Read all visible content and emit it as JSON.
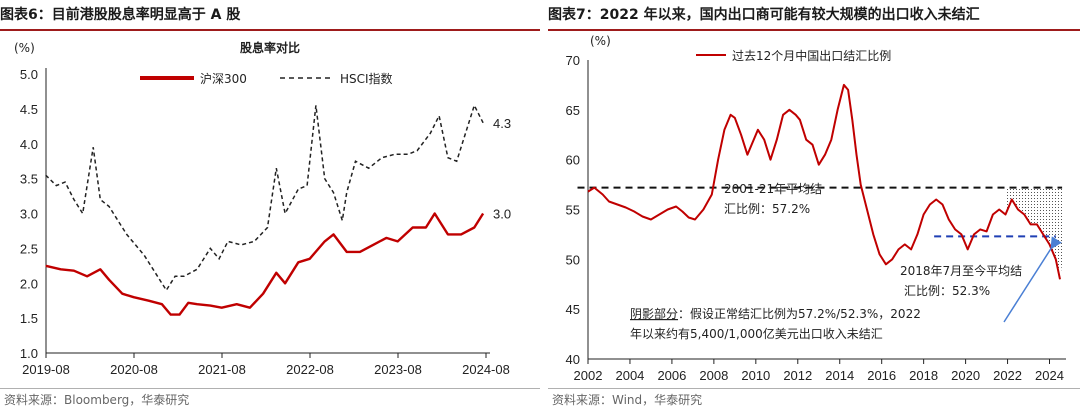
{
  "left": {
    "title": "图表6：目前港股股息率明显高于 A 股",
    "source": "资料来源：Bloomberg，华泰研究",
    "chart_data": {
      "type": "line",
      "title": "股息率对比",
      "unit_label": "(%)",
      "ylim": [
        1.0,
        5.0
      ],
      "yticks": [
        "1.0",
        "1.5",
        "2.0",
        "2.5",
        "3.0",
        "3.5",
        "4.0",
        "4.5",
        "5.0"
      ],
      "xlim": [
        "2019-08",
        "2024-08"
      ],
      "xticks": [
        "2019-08",
        "2020-08",
        "2021-08",
        "2022-08",
        "2023-08",
        "2024-08"
      ],
      "legend": [
        "沪深300",
        "HSCI指数"
      ],
      "legend_position": "top-center",
      "series": [
        {
          "name": "沪深300",
          "color": "#c00000",
          "style": "solid",
          "x": [
            2019.58,
            2019.75,
            2019.9,
            2020.05,
            2020.2,
            2020.3,
            2020.45,
            2020.58,
            2020.75,
            2020.9,
            2021.0,
            2021.1,
            2021.2,
            2021.3,
            2021.45,
            2021.58,
            2021.75,
            2021.9,
            2022.05,
            2022.2,
            2022.3,
            2022.45,
            2022.58,
            2022.75,
            2022.85,
            2023.0,
            2023.15,
            2023.3,
            2023.45,
            2023.58,
            2023.75,
            2023.9,
            2024.0,
            2024.05,
            2024.15,
            2024.3,
            2024.45,
            2024.55
          ],
          "values": [
            2.25,
            2.2,
            2.18,
            2.1,
            2.2,
            2.05,
            1.85,
            1.8,
            1.75,
            1.7,
            1.55,
            1.55,
            1.72,
            1.7,
            1.68,
            1.65,
            1.7,
            1.65,
            1.85,
            2.15,
            2.0,
            2.3,
            2.35,
            2.6,
            2.7,
            2.45,
            2.45,
            2.55,
            2.65,
            2.6,
            2.8,
            2.8,
            3.0,
            2.9,
            2.7,
            2.7,
            2.8,
            3.0
          ],
          "end_label": "3.0"
        },
        {
          "name": "HSCI指数",
          "color": "#222222",
          "style": "dashed",
          "x": [
            2019.58,
            2019.7,
            2019.8,
            2019.9,
            2020.0,
            2020.12,
            2020.2,
            2020.3,
            2020.4,
            2020.5,
            2020.6,
            2020.7,
            2020.8,
            2020.95,
            2021.05,
            2021.15,
            2021.3,
            2021.45,
            2021.55,
            2021.65,
            2021.8,
            2021.95,
            2022.1,
            2022.2,
            2022.3,
            2022.45,
            2022.55,
            2022.65,
            2022.75,
            2022.85,
            2022.95,
            2023.0,
            2023.1,
            2023.25,
            2023.4,
            2023.55,
            2023.7,
            2023.8,
            2023.95,
            2024.05,
            2024.15,
            2024.25,
            2024.35,
            2024.45,
            2024.55
          ],
          "values": [
            3.55,
            3.4,
            3.45,
            3.2,
            3.0,
            3.95,
            3.2,
            3.1,
            2.9,
            2.7,
            2.55,
            2.4,
            2.2,
            1.9,
            2.1,
            2.1,
            2.2,
            2.5,
            2.35,
            2.6,
            2.55,
            2.6,
            2.8,
            3.65,
            3.0,
            3.35,
            3.4,
            4.55,
            3.5,
            3.3,
            2.9,
            3.3,
            3.75,
            3.65,
            3.8,
            3.85,
            3.85,
            3.9,
            4.15,
            4.4,
            3.8,
            3.75,
            4.15,
            4.55,
            4.3
          ],
          "end_label": "4.3"
        }
      ]
    }
  },
  "right": {
    "title": "图表7：2022 年以来，国内出口商可能有较大规模的出口收入未结汇",
    "source": "资料来源：Wind，华泰研究",
    "chart_data": {
      "type": "line",
      "unit_label": "(%)",
      "ylim": [
        40,
        70
      ],
      "yticks": [
        "40",
        "45",
        "50",
        "55",
        "60",
        "65",
        "70"
      ],
      "xlim": [
        2002,
        2024.5
      ],
      "xticks": [
        "2002",
        "2004",
        "2006",
        "2008",
        "2010",
        "2012",
        "2014",
        "2016",
        "2018",
        "2020",
        "2022",
        "2024"
      ],
      "legend": [
        "过去12个月中国出口结汇比例"
      ],
      "legend_position": "top-center",
      "series": [
        {
          "name": "过去12个月中国出口结汇比例",
          "color": "#c00000",
          "style": "solid",
          "x": [
            2002.0,
            2002.3,
            2002.7,
            2003.0,
            2003.4,
            2003.8,
            2004.2,
            2004.6,
            2005.0,
            2005.4,
            2005.8,
            2006.2,
            2006.5,
            2006.8,
            2007.1,
            2007.5,
            2007.9,
            2008.2,
            2008.5,
            2008.8,
            2009.0,
            2009.3,
            2009.6,
            2009.8,
            2010.1,
            2010.4,
            2010.7,
            2011.0,
            2011.3,
            2011.6,
            2011.9,
            2012.1,
            2012.4,
            2012.7,
            2013.0,
            2013.3,
            2013.6,
            2013.9,
            2014.2,
            2014.4,
            2014.6,
            2014.8,
            2015.0,
            2015.3,
            2015.6,
            2015.9,
            2016.2,
            2016.5,
            2016.8,
            2017.1,
            2017.4,
            2017.7,
            2018.0,
            2018.3,
            2018.6,
            2018.9,
            2019.2,
            2019.5,
            2019.8,
            2020.1,
            2020.4,
            2020.7,
            2021.0,
            2021.3,
            2021.6,
            2021.9,
            2022.2,
            2022.5,
            2022.8,
            2023.1,
            2023.4,
            2023.7,
            2024.0,
            2024.3,
            2024.5
          ],
          "values": [
            56.8,
            57.2,
            56.5,
            55.8,
            55.5,
            55.2,
            54.8,
            54.3,
            54.0,
            54.5,
            55.0,
            55.3,
            54.8,
            54.2,
            54.0,
            55.0,
            56.5,
            60.0,
            63.0,
            64.5,
            64.2,
            62.5,
            60.5,
            61.5,
            63.0,
            62.0,
            60.0,
            62.0,
            64.5,
            65.0,
            64.5,
            64.0,
            62.0,
            61.5,
            59.5,
            60.5,
            62.0,
            65.0,
            67.5,
            67.0,
            64.0,
            60.5,
            57.5,
            55.0,
            52.5,
            50.5,
            49.5,
            50.0,
            51.0,
            51.5,
            51.0,
            52.5,
            54.5,
            55.5,
            56.0,
            55.5,
            54.0,
            53.0,
            52.5,
            51.0,
            52.5,
            53.0,
            52.8,
            54.5,
            55.0,
            54.5,
            56.0,
            55.0,
            54.5,
            53.5,
            53.5,
            52.5,
            51.5,
            50.0,
            48.0
          ]
        }
      ],
      "reference_lines": [
        {
          "label": "2001-21年平均结汇比例：57.2%",
          "value": 57.2,
          "from": 2001.5,
          "to": 2024.6,
          "color": "#111111"
        },
        {
          "label": "2018年7月至今平均结汇比例：52.3%",
          "value": 52.3,
          "from": 2018.5,
          "to": 2024.3,
          "color": "#1f3fb4"
        }
      ],
      "annotations": {
        "avg1_line1": "2001-21年平均结",
        "avg1_line2": "汇比例：57.2%",
        "avg2_line1": "2018年7月至今平均结",
        "avg2_line2": "汇比例：52.3%",
        "shade_prefix": "阴影部分",
        "shade_rest": "：假设正常结汇比例为57.2%/52.3%，2022",
        "shade_line2": "年以来约有5,400/1,000亿美元出口收入未结汇"
      }
    }
  }
}
